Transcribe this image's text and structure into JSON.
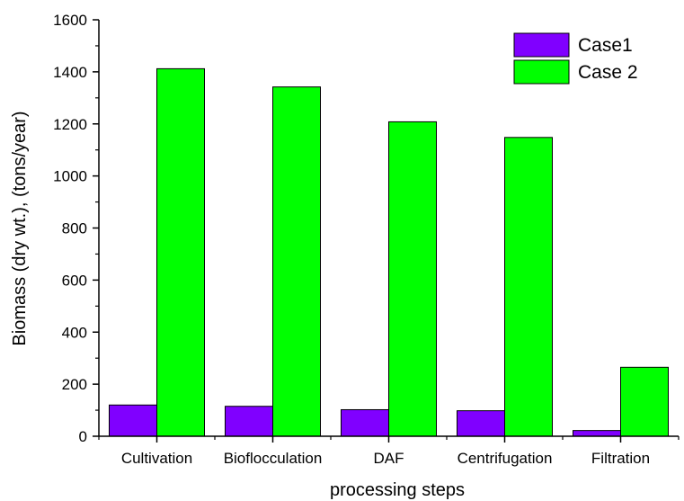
{
  "chart_data": {
    "type": "bar",
    "title": "",
    "xlabel": "processing steps",
    "ylabel": "Biomass (dry wt.), (tons/year)",
    "categories": [
      "Cultivation",
      "Bioflocculation",
      "DAF",
      "Centrifugation",
      "Filtration"
    ],
    "series": [
      {
        "name": "Case1",
        "values": [
          120,
          115,
          102,
          98,
          22
        ],
        "color": "#8000ff"
      },
      {
        "name": "Case 2",
        "values": [
          1412,
          1342,
          1208,
          1148,
          265
        ],
        "color": "#00ff00"
      }
    ],
    "ylim": [
      0,
      1600
    ],
    "yticks": [
      0,
      200,
      400,
      600,
      800,
      1000,
      1200,
      1400,
      1600
    ],
    "grid": false,
    "legend_position": "top-right"
  }
}
